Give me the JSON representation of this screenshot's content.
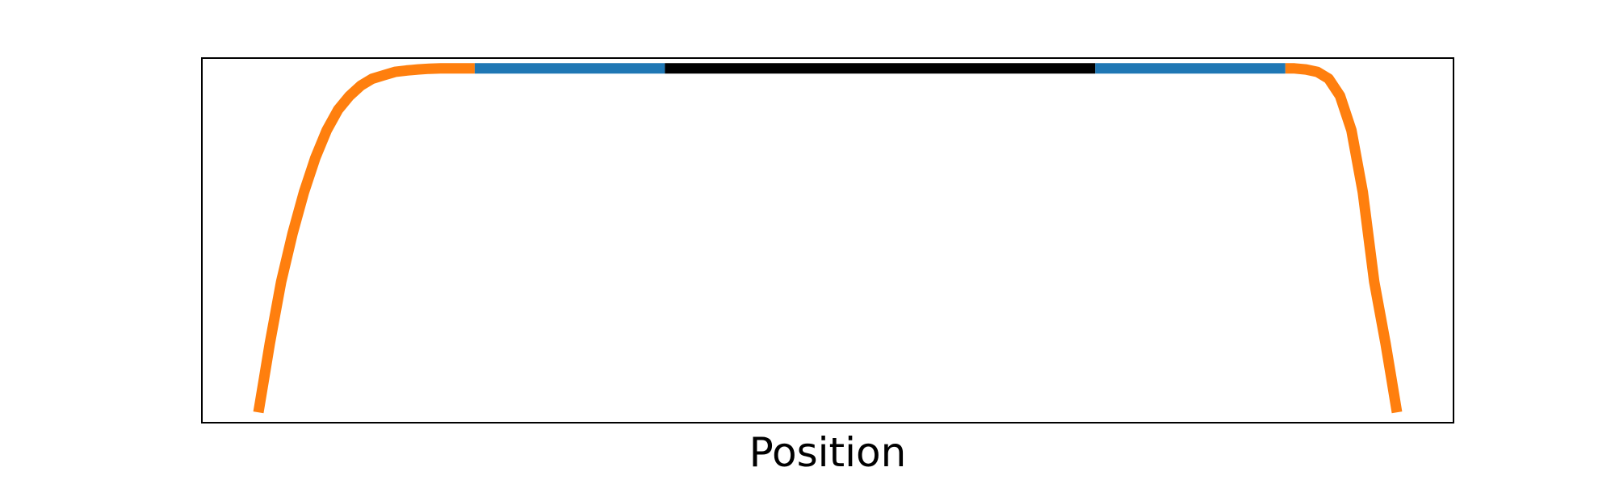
{
  "chart_data": {
    "type": "line",
    "title": "",
    "xlabel": "Position",
    "ylabel": "",
    "xlim": [
      0,
      1
    ],
    "ylim": [
      -0.03,
      1.03
    ],
    "grid": false,
    "legend": "none",
    "axis_ticks": false,
    "series": [
      {
        "role": "left-ramp",
        "color": "#ff7f0e",
        "x": [
          0.0,
          0.005,
          0.01,
          0.02,
          0.03,
          0.04,
          0.05,
          0.06,
          0.07,
          0.08,
          0.09,
          0.1,
          0.11,
          0.12,
          0.13,
          0.14,
          0.15,
          0.16,
          0.17,
          0.18,
          0.19
        ],
        "y": [
          0.0,
          0.1,
          0.2,
          0.38,
          0.52,
          0.64,
          0.74,
          0.82,
          0.88,
          0.92,
          0.95,
          0.97,
          0.98,
          0.99,
          0.994,
          0.997,
          0.999,
          1.0,
          1.0,
          1.0,
          1.0
        ]
      },
      {
        "role": "left-segment",
        "color": "#1f77b4",
        "x": [
          0.19,
          0.357
        ],
        "y": [
          1.0,
          1.0
        ]
      },
      {
        "role": "center-segment",
        "color": "#000000",
        "x": [
          0.357,
          0.735
        ],
        "y": [
          1.0,
          1.0
        ]
      },
      {
        "role": "right-segment",
        "color": "#1f77b4",
        "x": [
          0.735,
          0.902
        ],
        "y": [
          1.0,
          1.0
        ]
      },
      {
        "role": "right-ramp",
        "color": "#ff7f0e",
        "x": [
          0.902,
          0.91,
          0.92,
          0.93,
          0.94,
          0.95,
          0.96,
          0.97,
          0.98,
          0.99,
          0.995,
          1.0
        ],
        "y": [
          1.0,
          1.0,
          0.997,
          0.99,
          0.97,
          0.92,
          0.82,
          0.64,
          0.38,
          0.2,
          0.1,
          0.0
        ]
      }
    ]
  }
}
